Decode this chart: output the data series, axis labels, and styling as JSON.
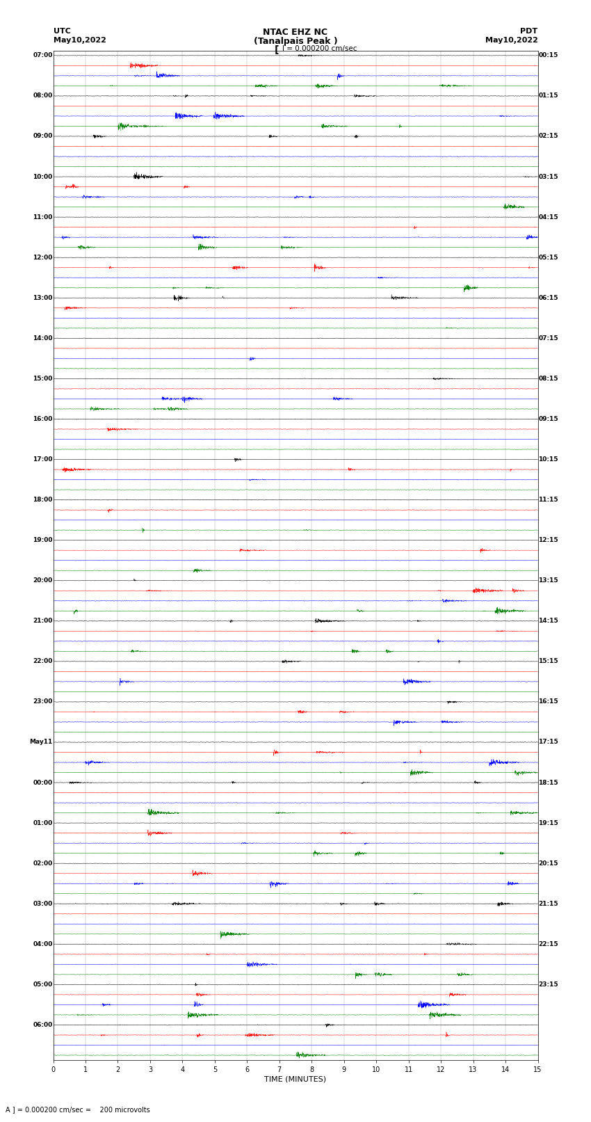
{
  "title_line1": "NTAC EHZ NC",
  "title_line2": "(Tanalpais Peak )",
  "title_line3": "I = 0.000200 cm/sec",
  "left_label_line1": "UTC",
  "left_label_line2": "May10,2022",
  "right_label_line1": "PDT",
  "right_label_line2": "May10,2022",
  "bottom_note": "A ] = 0.000200 cm/sec =    200 microvolts",
  "utc_hour_labels": [
    "07:00",
    "08:00",
    "09:00",
    "10:00",
    "11:00",
    "12:00",
    "13:00",
    "14:00",
    "15:00",
    "16:00",
    "17:00",
    "18:00",
    "19:00",
    "20:00",
    "21:00",
    "22:00",
    "23:00",
    "May11",
    "00:00",
    "01:00",
    "02:00",
    "03:00",
    "04:00",
    "05:00",
    "06:00"
  ],
  "pdt_hour_labels": [
    "00:15",
    "01:15",
    "02:15",
    "03:15",
    "04:15",
    "05:15",
    "06:15",
    "07:15",
    "08:15",
    "09:15",
    "10:15",
    "11:15",
    "12:15",
    "13:15",
    "14:15",
    "15:15",
    "16:15",
    "17:15",
    "18:15",
    "19:15",
    "20:15",
    "21:15",
    "22:15",
    "23:15"
  ],
  "n_rows": 100,
  "n_minutes": 15,
  "colors_cycle": [
    "black",
    "red",
    "blue",
    "green"
  ],
  "xlabel": "TIME (MINUTES)",
  "xmin": 0,
  "xmax": 15
}
